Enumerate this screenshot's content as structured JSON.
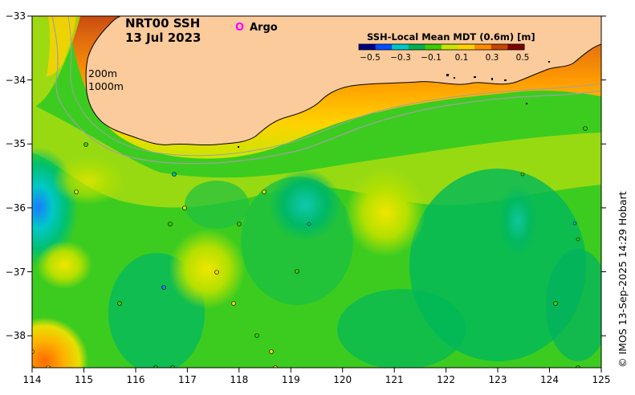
{
  "map": {
    "title_line1": "NRT00 SSH",
    "title_line2": "13 Jul 2023",
    "argo_symbol": "O",
    "argo_label": "Argo",
    "contour_label_200": "200m",
    "contour_label_1000": "1000m",
    "credit": "© IMOS 13-Sep-2025 14:29 Hobart",
    "colors": {
      "land": "#fbcb9b",
      "argo_marker": "#ff00ff",
      "isobath": "#a0a0a0"
    }
  },
  "legend": {
    "title": "SSH-Local Mean MDT (0.6m) [m]",
    "ticks": [
      "−0.5",
      "−0.3",
      "−0.1",
      "0.1",
      "0.3",
      "0.5"
    ],
    "colormap": [
      "#00007f",
      "#0050ff",
      "#00c8c8",
      "#00b050",
      "#3ccc00",
      "#c8e600",
      "#ffd200",
      "#ff8c00",
      "#c84600",
      "#7f0000"
    ]
  },
  "axes": {
    "x_ticks": [
      "114",
      "115",
      "116",
      "117",
      "118",
      "119",
      "120",
      "121",
      "122",
      "123",
      "124",
      "125"
    ],
    "y_ticks": [
      "−33",
      "−34",
      "−35",
      "−36",
      "−37",
      "−38"
    ]
  }
}
